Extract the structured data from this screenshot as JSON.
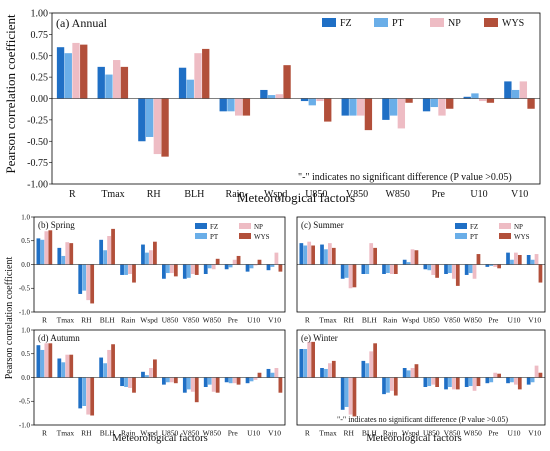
{
  "colors": {
    "FZ": "#1f6fc5",
    "PT": "#6aaee8",
    "NP": "#eebcc4",
    "WYS": "#b24f3a"
  },
  "labels": {
    "ylabel_main": "Pearson correlation coefficient",
    "ylabel_sub": "Pearson correlation coefficient",
    "xlabel": "Meteorological factors",
    "note": "\"-\" indicates no significant difference (P value >0.05)"
  },
  "chart_data": [
    {
      "type": "bar",
      "title": "(a) Annual",
      "xlabel": "Meteorological factors",
      "ylabel": "Pearson correlation coefficient",
      "ylim": [
        -1.0,
        1.0
      ],
      "yticks": [
        "1.00",
        "0.75",
        "0.50",
        "0.25",
        "0.00",
        "-0.25",
        "-0.50",
        "-0.75",
        "-1.00"
      ],
      "categories": [
        "R",
        "Tmax",
        "RH",
        "BLH",
        "Rain",
        "Wspd",
        "U850",
        "V850",
        "W850",
        "Pre",
        "U10",
        "V10"
      ],
      "legend": "top-right",
      "series": [
        {
          "name": "FZ",
          "values": [
            0.6,
            0.37,
            -0.5,
            0.36,
            -0.15,
            0.1,
            -0.03,
            -0.2,
            -0.25,
            -0.15,
            0.02,
            0.2
          ]
        },
        {
          "name": "PT",
          "values": [
            0.53,
            0.28,
            -0.45,
            0.22,
            -0.15,
            0.04,
            -0.08,
            -0.2,
            -0.2,
            -0.1,
            0.06,
            0.1
          ]
        },
        {
          "name": "NP",
          "values": [
            0.65,
            0.45,
            -0.65,
            0.53,
            -0.2,
            0.05,
            -0.03,
            -0.2,
            -0.35,
            -0.2,
            -0.03,
            0.2
          ]
        },
        {
          "name": "WYS",
          "values": [
            0.63,
            0.37,
            -0.68,
            0.58,
            -0.2,
            0.39,
            -0.27,
            -0.37,
            -0.05,
            -0.12,
            -0.05,
            -0.12
          ]
        }
      ]
    },
    {
      "type": "bar",
      "title": "(b) Spring",
      "ylim": [
        -1.0,
        1.0
      ],
      "yticks": [
        "1.0",
        "0.5",
        "0.0",
        "-0.5",
        "-1.0"
      ],
      "categories": [
        "R",
        "Tmax",
        "RH",
        "BLH",
        "Rain",
        "Wspd",
        "U850",
        "V850",
        "W850",
        "Pre",
        "U10",
        "V10"
      ],
      "series": [
        {
          "name": "FZ",
          "values": [
            0.55,
            0.35,
            -0.62,
            0.52,
            -0.22,
            0.42,
            -0.3,
            -0.3,
            -0.2,
            -0.1,
            -0.15,
            -0.12
          ]
        },
        {
          "name": "PT",
          "values": [
            0.52,
            0.18,
            -0.55,
            0.3,
            -0.22,
            0.25,
            -0.18,
            -0.28,
            -0.08,
            -0.06,
            -0.08,
            -0.05
          ]
        },
        {
          "name": "NP",
          "values": [
            0.7,
            0.47,
            -0.75,
            0.6,
            -0.2,
            0.3,
            -0.18,
            -0.2,
            -0.1,
            0.1,
            -0.02,
            0.25
          ]
        },
        {
          "name": "WYS",
          "values": [
            0.72,
            0.45,
            -0.82,
            0.75,
            -0.38,
            0.48,
            -0.25,
            -0.22,
            0.12,
            0.18,
            0.1,
            -0.15
          ]
        }
      ]
    },
    {
      "type": "bar",
      "title": "(c) Summer",
      "ylim": [
        -1.0,
        1.0
      ],
      "categories": [
        "R",
        "Tmax",
        "RH",
        "BLH",
        "Rain",
        "Wspd",
        "U850",
        "V850",
        "W850",
        "Pre",
        "U10",
        "V10"
      ],
      "series": [
        {
          "name": "FZ",
          "values": [
            0.45,
            0.42,
            -0.3,
            -0.2,
            -0.2,
            0.1,
            -0.1,
            -0.2,
            -0.22,
            -0.05,
            0.25,
            0.2
          ]
        },
        {
          "name": "PT",
          "values": [
            0.4,
            0.32,
            -0.28,
            -0.2,
            -0.18,
            0.05,
            -0.12,
            -0.18,
            -0.18,
            -0.03,
            0.1,
            0.1
          ]
        },
        {
          "name": "NP",
          "values": [
            0.48,
            0.45,
            -0.5,
            0.45,
            -0.2,
            0.32,
            -0.22,
            -0.3,
            -0.3,
            -0.05,
            0.25,
            0.22
          ]
        },
        {
          "name": "WYS",
          "values": [
            0.4,
            0.35,
            -0.48,
            0.35,
            -0.2,
            0.3,
            -0.28,
            -0.45,
            0.22,
            -0.08,
            0.2,
            -0.38
          ]
        }
      ]
    },
    {
      "type": "bar",
      "title": "(d) Autumn",
      "ylim": [
        -1.0,
        1.0
      ],
      "yticks": [
        "1.0",
        "0.5",
        "0.0",
        "-0.5",
        "-1.0"
      ],
      "categories": [
        "R",
        "Tmax",
        "RH",
        "BLH",
        "Rain",
        "Wspd",
        "U850",
        "V850",
        "W850",
        "Pre",
        "U10",
        "V10"
      ],
      "series": [
        {
          "name": "FZ",
          "values": [
            0.68,
            0.4,
            -0.65,
            0.42,
            -0.18,
            0.12,
            -0.15,
            -0.32,
            -0.2,
            -0.1,
            -0.12,
            0.18
          ]
        },
        {
          "name": "PT",
          "values": [
            0.58,
            0.32,
            -0.6,
            0.3,
            -0.2,
            0.05,
            -0.1,
            -0.25,
            -0.15,
            -0.12,
            -0.08,
            0.1
          ]
        },
        {
          "name": "NP",
          "values": [
            0.72,
            0.48,
            -0.78,
            0.58,
            -0.22,
            0.2,
            -0.1,
            -0.3,
            -0.3,
            -0.12,
            -0.05,
            0.2
          ]
        },
        {
          "name": "WYS",
          "values": [
            0.72,
            0.48,
            -0.8,
            0.7,
            -0.32,
            0.38,
            -0.12,
            -0.52,
            -0.32,
            -0.15,
            0.1,
            -0.32
          ]
        }
      ]
    },
    {
      "type": "bar",
      "title": "(e) Winter",
      "ylim": [
        -1.0,
        1.0
      ],
      "categories": [
        "R",
        "Tmax",
        "RH",
        "BLH",
        "Rain",
        "Wspd",
        "U850",
        "V850",
        "W850",
        "Pre",
        "U10",
        "V10"
      ],
      "series": [
        {
          "name": "FZ",
          "values": [
            0.6,
            0.2,
            -0.68,
            0.35,
            -0.35,
            0.2,
            -0.2,
            -0.25,
            -0.2,
            -0.12,
            -0.12,
            -0.15
          ]
        },
        {
          "name": "PT",
          "values": [
            0.6,
            0.18,
            -0.62,
            0.3,
            -0.32,
            0.15,
            -0.18,
            -0.2,
            -0.18,
            -0.1,
            -0.1,
            -0.1
          ]
        },
        {
          "name": "NP",
          "values": [
            0.75,
            0.3,
            -0.78,
            0.55,
            -0.28,
            0.2,
            -0.15,
            -0.25,
            -0.28,
            0.1,
            -0.15,
            0.25
          ]
        },
        {
          "name": "WYS",
          "values": [
            0.75,
            0.35,
            -0.82,
            0.72,
            -0.38,
            0.28,
            -0.2,
            -0.25,
            -0.18,
            0.08,
            -0.25,
            0.1
          ]
        }
      ]
    }
  ]
}
